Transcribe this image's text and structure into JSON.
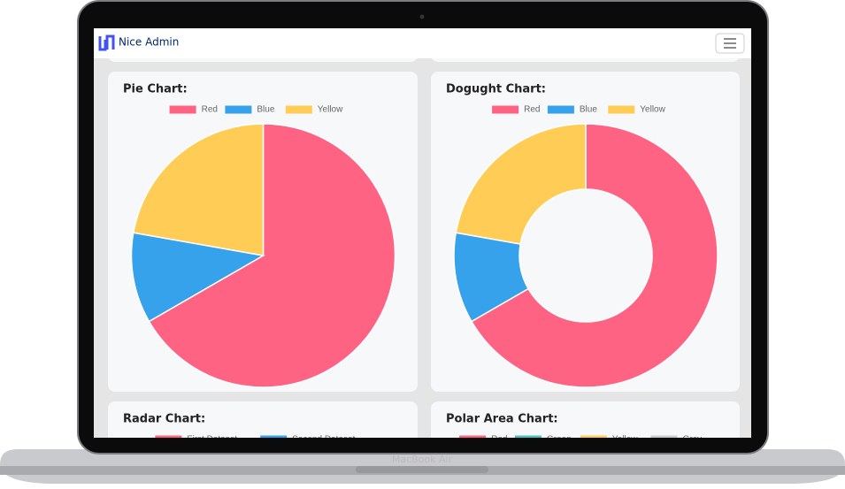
{
  "header": {
    "brand": "Nice Admin"
  },
  "charts": [
    {
      "type": "pie",
      "title": "Pie Chart:",
      "categories": [
        "Red",
        "Blue",
        "Yellow"
      ],
      "values": [
        300,
        50,
        100
      ],
      "colors": [
        "#ff6384",
        "#36a2eb",
        "#ffcd56"
      ]
    },
    {
      "type": "doughnut",
      "title": "Dogught Chart:",
      "categories": [
        "Red",
        "Blue",
        "Yellow"
      ],
      "values": [
        300,
        50,
        100
      ],
      "colors": [
        "#ff6384",
        "#36a2eb",
        "#ffcd56"
      ]
    },
    {
      "type": "radar",
      "title": "Radar Chart:",
      "categories": [
        "First Dataset",
        "Second Dataset"
      ],
      "colors": [
        "#ff6384",
        "#36a2eb"
      ]
    },
    {
      "type": "polarArea",
      "title": "Polar Area Chart:",
      "categories": [
        "Red",
        "Green",
        "Yellow",
        "Grey"
      ],
      "colors": [
        "#ff6384",
        "#4bc0c0",
        "#ffcd56",
        "#c9cbcf"
      ]
    }
  ],
  "device": {
    "label": "MacBook Air"
  }
}
